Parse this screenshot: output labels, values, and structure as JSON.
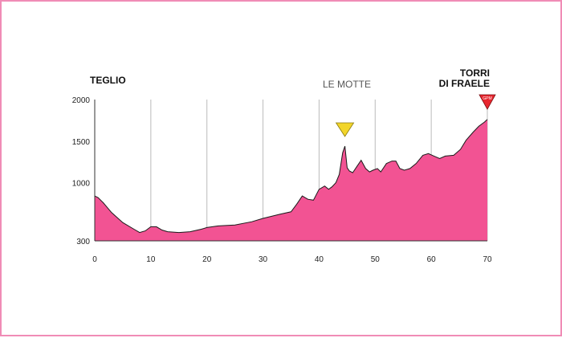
{
  "chart_data": {
    "type": "area",
    "title": "",
    "xlabel": "",
    "ylabel": "",
    "xlim": [
      0,
      70
    ],
    "ylim": [
      300,
      2000
    ],
    "x_ticks": [
      0,
      10,
      20,
      30,
      40,
      50,
      60,
      70
    ],
    "y_ticks": [
      300,
      1000,
      1500,
      2000
    ],
    "grid": "vertical",
    "colors": {
      "fill": "#f25393",
      "line": "#1a1a1a",
      "frame": "#f08cb6",
      "grid": "#bbbbbb",
      "kom_marker": "#e8262e",
      "sprint_marker": "#f2d52a"
    },
    "series": [
      {
        "x": [
          0,
          0.6,
          1.5,
          3,
          5,
          7,
          8,
          9,
          10,
          11,
          12,
          13,
          15,
          17,
          19,
          20,
          22,
          25,
          28,
          30,
          33,
          35,
          36,
          37,
          38,
          39,
          40,
          41,
          41.7,
          42.3,
          43,
          43.6,
          44.2,
          44.6,
          45,
          45.4,
          46,
          46.8,
          47.5,
          48.3,
          49,
          49.6,
          50.4,
          51,
          52,
          53,
          53.7,
          54.4,
          55.2,
          56.2,
          57.3,
          58.5,
          59.5,
          60.5,
          61.5,
          62.5,
          64,
          65.2,
          66.2,
          67.5,
          68.5,
          69.5,
          70
        ],
        "y": [
          840,
          820,
          760,
          640,
          520,
          440,
          400,
          420,
          470,
          470,
          430,
          410,
          400,
          410,
          440,
          460,
          480,
          490,
          530,
          570,
          620,
          650,
          740,
          840,
          800,
          790,
          920,
          960,
          920,
          950,
          1000,
          1100,
          1360,
          1440,
          1180,
          1140,
          1120,
          1200,
          1270,
          1170,
          1130,
          1150,
          1170,
          1130,
          1230,
          1260,
          1260,
          1170,
          1150,
          1170,
          1230,
          1330,
          1350,
          1320,
          1290,
          1320,
          1330,
          1400,
          1510,
          1610,
          1680,
          1730,
          1760
        ]
      }
    ],
    "places": {
      "start": [
        "TEGLIO"
      ],
      "middle": [
        "LE MOTTE"
      ],
      "end": [
        "TORRI",
        "DI FRAELE"
      ]
    },
    "markers": [
      {
        "kind": "sprint",
        "x": 44.6,
        "label": ""
      },
      {
        "kind": "kom",
        "x": 70,
        "label": "GPM"
      }
    ]
  }
}
